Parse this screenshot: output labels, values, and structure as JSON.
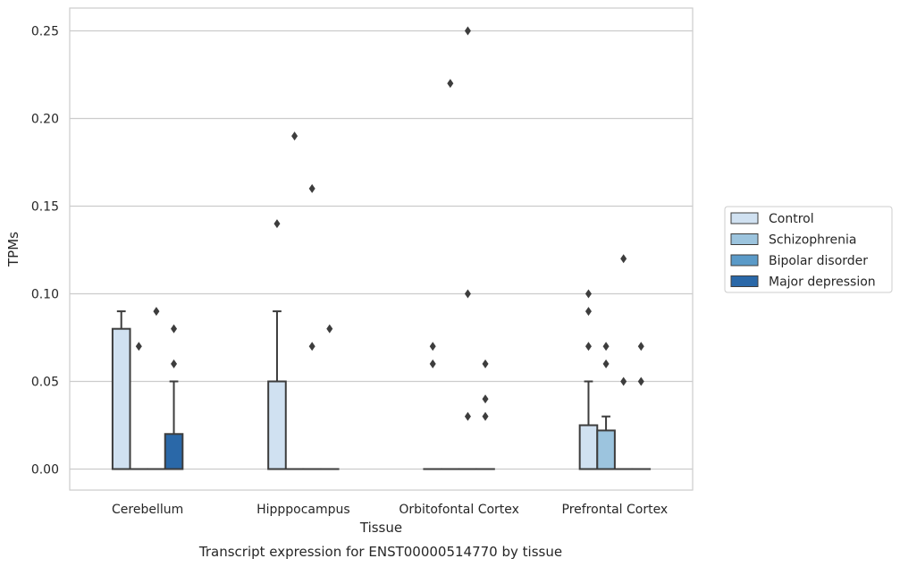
{
  "caption": "Transcript expression for ENST00000514770 by tissue",
  "chart_data": {
    "type": "box",
    "title": "",
    "xlabel": "Tissue",
    "ylabel": "TPMs",
    "ylim": [
      -0.012,
      0.263
    ],
    "yticks": [
      0.0,
      0.05,
      0.1,
      0.15,
      0.2,
      0.25
    ],
    "ytick_labels": [
      "0.00",
      "0.05",
      "0.10",
      "0.15",
      "0.20",
      "0.25"
    ],
    "grid": "horizontal",
    "legend_position": "outside-right",
    "categories": [
      "Cerebellum",
      "Hipppocampus",
      "Orbitofontal Cortex",
      "Prefrontal Cortex"
    ],
    "series": [
      {
        "name": "Control",
        "color": "#d0e1f1",
        "boxes": [
          {
            "q1": 0.0,
            "median": 0.0,
            "q3": 0.08,
            "whisker_low": 0.0,
            "whisker_high": 0.09,
            "outliers": []
          },
          {
            "q1": 0.0,
            "median": 0.0,
            "q3": 0.05,
            "whisker_low": 0.0,
            "whisker_high": 0.09,
            "outliers": [
              0.14
            ]
          },
          {
            "q1": 0.0,
            "median": 0.0,
            "q3": 0.0,
            "whisker_low": 0.0,
            "whisker_high": 0.0,
            "outliers": [
              0.06,
              0.07
            ]
          },
          {
            "q1": 0.0,
            "median": 0.0,
            "q3": 0.025,
            "whisker_low": 0.0,
            "whisker_high": 0.05,
            "outliers": [
              0.07,
              0.09,
              0.1
            ]
          }
        ]
      },
      {
        "name": "Schizophrenia",
        "color": "#9cc4de",
        "boxes": [
          {
            "q1": 0.0,
            "median": 0.0,
            "q3": 0.0,
            "whisker_low": 0.0,
            "whisker_high": 0.0,
            "outliers": [
              0.07
            ]
          },
          {
            "q1": 0.0,
            "median": 0.0,
            "q3": 0.0,
            "whisker_low": 0.0,
            "whisker_high": 0.0,
            "outliers": [
              0.19
            ]
          },
          {
            "q1": 0.0,
            "median": 0.0,
            "q3": 0.0,
            "whisker_low": 0.0,
            "whisker_high": 0.0,
            "outliers": [
              0.22
            ]
          },
          {
            "q1": 0.0,
            "median": 0.0,
            "q3": 0.022,
            "whisker_low": 0.0,
            "whisker_high": 0.03,
            "outliers": [
              0.06,
              0.07
            ]
          }
        ]
      },
      {
        "name": "Bipolar disorder",
        "color": "#5a9ac8",
        "boxes": [
          {
            "q1": 0.0,
            "median": 0.0,
            "q3": 0.0,
            "whisker_low": 0.0,
            "whisker_high": 0.0,
            "outliers": [
              0.09
            ]
          },
          {
            "q1": 0.0,
            "median": 0.0,
            "q3": 0.0,
            "whisker_low": 0.0,
            "whisker_high": 0.0,
            "outliers": [
              0.07,
              0.16
            ]
          },
          {
            "q1": 0.0,
            "median": 0.0,
            "q3": 0.0,
            "whisker_low": 0.0,
            "whisker_high": 0.0,
            "outliers": [
              0.03,
              0.1,
              0.25
            ]
          },
          {
            "q1": 0.0,
            "median": 0.0,
            "q3": 0.0,
            "whisker_low": 0.0,
            "whisker_high": 0.0,
            "outliers": [
              0.05,
              0.12
            ]
          }
        ]
      },
      {
        "name": "Major depression",
        "color": "#2a68a8",
        "boxes": [
          {
            "q1": 0.0,
            "median": 0.0,
            "q3": 0.02,
            "whisker_low": 0.0,
            "whisker_high": 0.05,
            "outliers": [
              0.06,
              0.08
            ]
          },
          {
            "q1": 0.0,
            "median": 0.0,
            "q3": 0.0,
            "whisker_low": 0.0,
            "whisker_high": 0.0,
            "outliers": [
              0.08
            ]
          },
          {
            "q1": 0.0,
            "median": 0.0,
            "q3": 0.0,
            "whisker_low": 0.0,
            "whisker_high": 0.0,
            "outliers": [
              0.03,
              0.04,
              0.06
            ]
          },
          {
            "q1": 0.0,
            "median": 0.0,
            "q3": 0.0,
            "whisker_low": 0.0,
            "whisker_high": 0.0,
            "outliers": [
              0.05,
              0.07
            ]
          }
        ]
      }
    ]
  }
}
